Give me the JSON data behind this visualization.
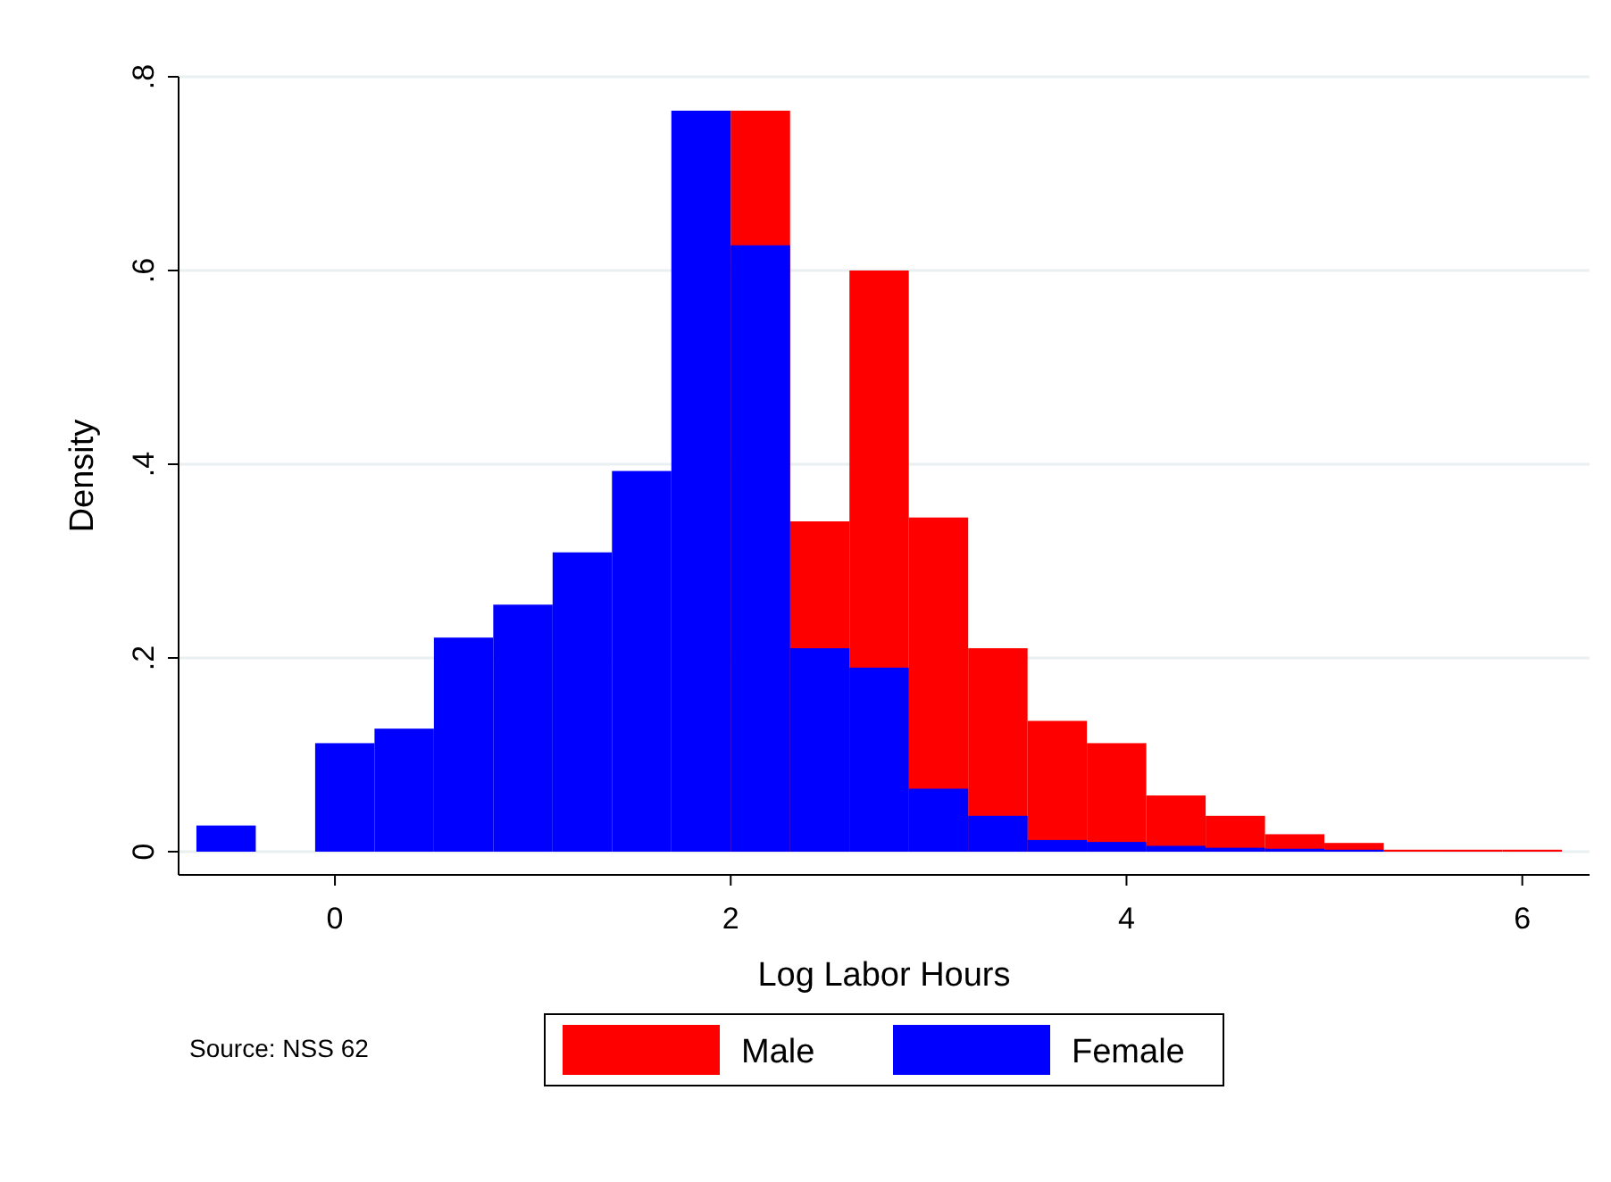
{
  "chart_data": {
    "type": "histogram",
    "xlabel": "Log Labor Hours",
    "ylabel": "Density",
    "bins": [
      -0.7,
      -0.4,
      -0.1,
      0.2,
      0.5,
      0.8,
      1.1,
      1.4,
      1.7,
      2.0,
      2.3,
      2.6,
      2.9,
      3.2,
      3.5,
      3.8,
      4.1,
      4.4,
      4.7,
      5.0,
      5.3,
      5.6,
      5.9,
      6.2
    ],
    "series": [
      {
        "name": "Male",
        "color": "#ff0000",
        "values": [
          null,
          null,
          null,
          null,
          null,
          null,
          null,
          null,
          null,
          0.765,
          0.341,
          0.6,
          0.345,
          0.21,
          0.135,
          0.112,
          0.058,
          0.037,
          0.018,
          0.009,
          0.002,
          0.002,
          0.002
        ]
      },
      {
        "name": "Female",
        "color": "#0000ff",
        "values": [
          0.027,
          0,
          0.112,
          0.127,
          0.221,
          0.255,
          0.309,
          0.393,
          0.765,
          0.626,
          0.21,
          0.19,
          0.065,
          0.037,
          0.012,
          0.01,
          0.006,
          0.004,
          0.003,
          0.002,
          null,
          0,
          0
        ]
      }
    ],
    "xlim": [
      -0.79,
      6.34
    ],
    "ylim": [
      -0.024,
      0.8
    ],
    "xticks": [
      0,
      2,
      4,
      6
    ],
    "yticks": [
      0,
      {
        "value": 0.2,
        "label": ".2"
      },
      {
        "value": 0.4,
        "label": ".4"
      },
      {
        "value": 0.6,
        "label": ".6"
      },
      {
        "value": 0.8,
        "label": ".8"
      }
    ],
    "grid": "y",
    "legend": "bottom",
    "annotations": [
      "Source: NSS 62"
    ]
  }
}
